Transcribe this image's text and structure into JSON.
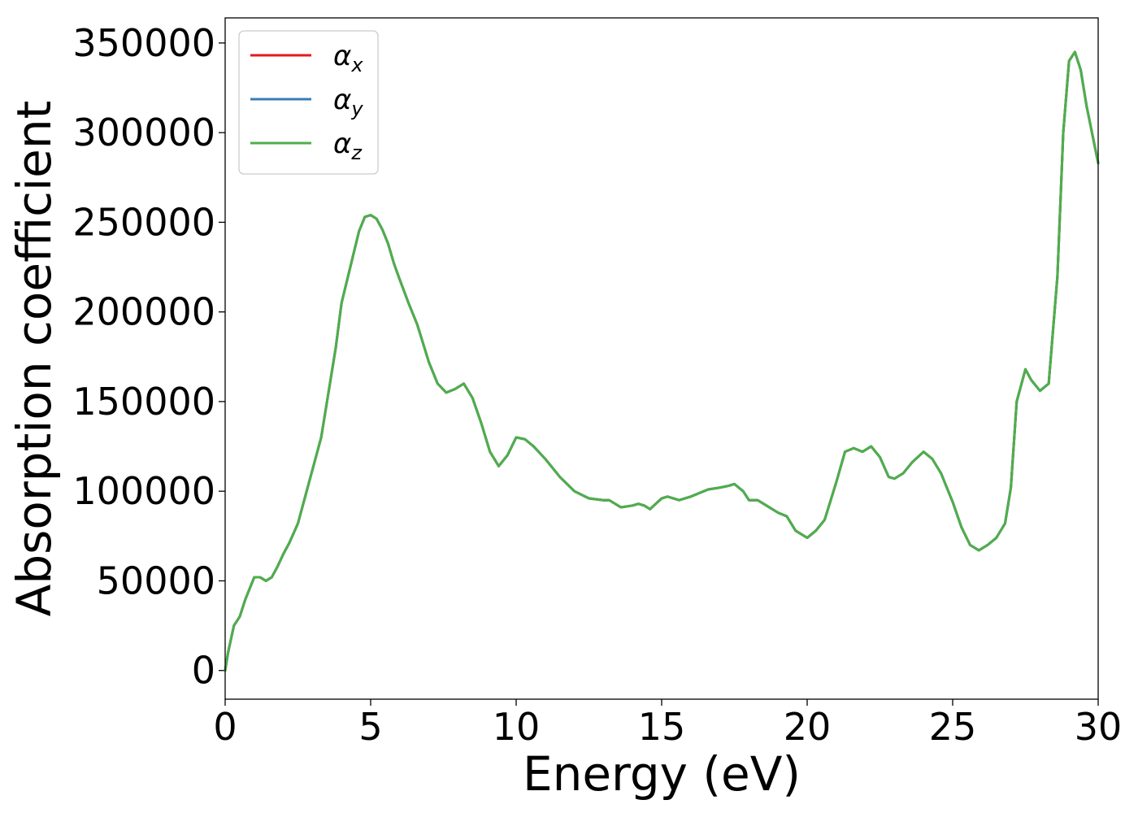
{
  "chart_data": {
    "type": "line",
    "title": "",
    "xlabel": "Energy (eV)",
    "ylabel": "Absorption coefficient",
    "xlim": [
      0,
      30
    ],
    "ylim": [
      -16000,
      364000
    ],
    "xticks": [
      "0",
      "5",
      "10",
      "15",
      "20",
      "25",
      "30"
    ],
    "xtick_values": [
      0,
      5,
      10,
      15,
      20,
      25,
      30
    ],
    "yticks": [
      "0",
      "50000",
      "100000",
      "150000",
      "200000",
      "250000",
      "300000",
      "350000"
    ],
    "ytick_values": [
      0,
      50000,
      100000,
      150000,
      200000,
      250000,
      300000,
      350000
    ],
    "grid": false,
    "legend_position": "top-left",
    "series": [
      {
        "name": "α_x",
        "symbol": "α",
        "sub": "x",
        "color": "#e41a1c"
      },
      {
        "name": "α_y",
        "symbol": "α",
        "sub": "y",
        "color": "#377eb8"
      },
      {
        "name": "α_z",
        "symbol": "α",
        "sub": "z",
        "color": "#4daf4a"
      }
    ],
    "x": [
      0,
      0.1,
      0.3,
      0.5,
      0.7,
      1.0,
      1.2,
      1.4,
      1.6,
      1.8,
      2.0,
      2.2,
      2.5,
      2.8,
      3.0,
      3.3,
      3.5,
      3.8,
      4.0,
      4.3,
      4.6,
      4.8,
      5.0,
      5.2,
      5.4,
      5.6,
      5.8,
      6.0,
      6.3,
      6.6,
      7.0,
      7.3,
      7.6,
      7.9,
      8.2,
      8.5,
      8.8,
      9.1,
      9.4,
      9.7,
      10.0,
      10.3,
      10.6,
      11.0,
      11.5,
      12.0,
      12.5,
      13.0,
      13.2,
      13.6,
      14.0,
      14.2,
      14.4,
      14.6,
      15.0,
      15.2,
      15.6,
      16.0,
      16.3,
      16.6,
      17.0,
      17.3,
      17.5,
      17.8,
      18.0,
      18.3,
      18.6,
      19.0,
      19.3,
      19.6,
      20.0,
      20.3,
      20.6,
      21.0,
      21.3,
      21.6,
      21.9,
      22.2,
      22.5,
      22.8,
      23.0,
      23.3,
      23.6,
      24.0,
      24.3,
      24.6,
      25.0,
      25.3,
      25.6,
      25.9,
      26.2,
      26.5,
      26.8,
      27.0,
      27.2,
      27.5,
      27.7,
      28.0,
      28.3,
      28.6,
      28.8,
      29.0,
      29.2,
      29.4,
      29.6,
      30.0
    ],
    "values": [
      0,
      10000,
      25000,
      30000,
      40000,
      52000,
      52000,
      50000,
      52000,
      58000,
      65000,
      71000,
      82000,
      100000,
      112000,
      130000,
      150000,
      180000,
      205000,
      225000,
      245000,
      253000,
      254000,
      252000,
      246000,
      238000,
      227000,
      218000,
      205000,
      193000,
      172000,
      160000,
      155000,
      157000,
      160000,
      152000,
      138000,
      122000,
      114000,
      120000,
      130000,
      129000,
      125000,
      118000,
      108000,
      100000,
      96000,
      95000,
      95000,
      91000,
      92000,
      93000,
      92000,
      90000,
      96000,
      97000,
      95000,
      97000,
      99000,
      101000,
      102000,
      103000,
      104000,
      100000,
      95000,
      95000,
      92000,
      88000,
      86000,
      78000,
      74000,
      78000,
      84000,
      105000,
      122000,
      124000,
      122000,
      125000,
      119000,
      108000,
      107000,
      110000,
      116000,
      122000,
      118000,
      110000,
      94000,
      80000,
      70000,
      67000,
      70000,
      74000,
      82000,
      102000,
      150000,
      168000,
      162000,
      156000,
      160000,
      220000,
      300000,
      340000,
      345000,
      335000,
      315000,
      283000
    ]
  }
}
